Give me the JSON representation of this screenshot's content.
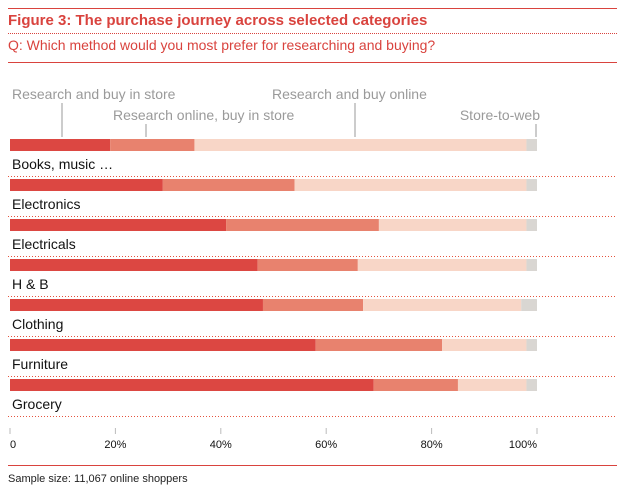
{
  "header": {
    "title": "Figure 3: The purchase journey across selected categories",
    "subtitle": "Q: Which method would you most prefer for researching and buying?"
  },
  "footer": {
    "note": "Sample size: 11,067 online shoppers"
  },
  "chart_data": {
    "type": "bar",
    "orientation": "horizontal",
    "stacked": true,
    "categories": [
      "Books, music …",
      "Electronics",
      "Electricals",
      "H & B",
      "Clothing",
      "Furniture",
      "Grocery"
    ],
    "series": [
      {
        "name": "Research and buy in store",
        "color": "#dc4742",
        "values": [
          19,
          29,
          41,
          47,
          48,
          58,
          69
        ]
      },
      {
        "name": "Research online, buy in store",
        "color": "#e8826e",
        "values": [
          16,
          25,
          29,
          19,
          19,
          24,
          16
        ]
      },
      {
        "name": "Research and buy online",
        "color": "#f8d6c7",
        "values": [
          63,
          44,
          28,
          32,
          30,
          16,
          13
        ]
      },
      {
        "name": "Store-to-web",
        "color": "#d9d6d2",
        "values": [
          2,
          2,
          2,
          2,
          3,
          2,
          2
        ]
      }
    ],
    "xlim": [
      0,
      100
    ],
    "xticks": [
      "0",
      "20%",
      "40%",
      "60%",
      "80%",
      "100%"
    ],
    "legend_placement": "top",
    "grid": false
  }
}
